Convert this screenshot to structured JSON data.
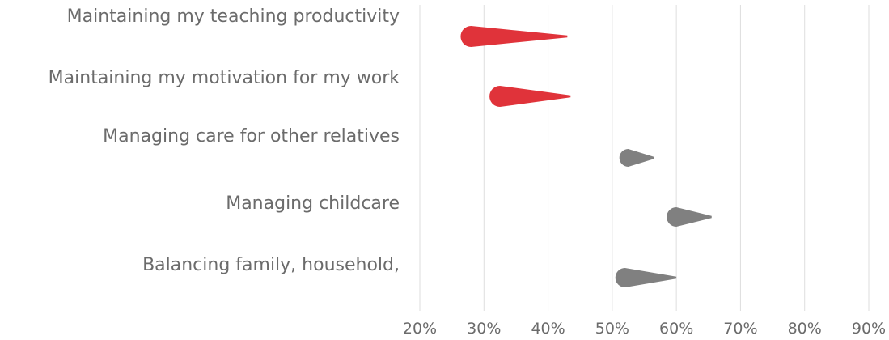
{
  "chart_data": {
    "type": "scatter",
    "title": "",
    "xlabel": "",
    "ylabel": "",
    "xlim": [
      20,
      90
    ],
    "grid": true,
    "legend": "none",
    "x_ticks": [
      "20%",
      "30%",
      "40%",
      "50%",
      "60%",
      "70%",
      "80%",
      "90%"
    ],
    "categories": [
      "Maintaining my teaching productivity",
      "Maintaining my motivation for my work",
      "Managing care for other relatives",
      "Managing childcare",
      "Balancing family, household,"
    ],
    "series": [
      {
        "start": [
          28,
          32.5,
          52.5,
          60,
          52
        ],
        "end": [
          43,
          43.5,
          56.5,
          65.5,
          60
        ]
      }
    ],
    "colors": [
      "#e0333a",
      "#e0333a",
      "#808080",
      "#808080",
      "#808080"
    ]
  }
}
